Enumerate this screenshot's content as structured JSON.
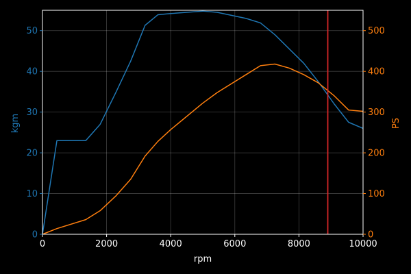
{
  "chart_data": {
    "type": "line",
    "xlabel": "rpm",
    "ylabel_left": "kgm",
    "ylabel_right": "PS",
    "xlim": [
      0,
      10000
    ],
    "ylim_left": [
      0,
      55
    ],
    "ylim_right": [
      0,
      550
    ],
    "x_ticks": [
      0,
      2000,
      4000,
      6000,
      8000,
      10000
    ],
    "y_ticks_left": [
      0,
      10,
      20,
      30,
      40,
      50
    ],
    "y_ticks_right": [
      0,
      100,
      200,
      300,
      400,
      500
    ],
    "grid": true,
    "vline_x": 8900,
    "series": [
      {
        "axis": "left",
        "color": "#1f77b4",
        "x": [
          0,
          450,
          1350,
          1800,
          2300,
          2750,
          3200,
          3600,
          4000,
          5000,
          5450,
          6350,
          6800,
          7250,
          8150,
          8600,
          9100,
          9550,
          10000
        ],
        "y": [
          0,
          23,
          23,
          27,
          35,
          42.5,
          51.3,
          53.9,
          54.2,
          54.8,
          54.5,
          53,
          51.9,
          49,
          42,
          37.5,
          32,
          27.5,
          26
        ]
      },
      {
        "axis": "right",
        "color": "#ff7f0e",
        "x": [
          0,
          450,
          1350,
          1800,
          2300,
          2750,
          3200,
          3600,
          4000,
          5000,
          5450,
          6350,
          6800,
          7250,
          7700,
          8150,
          8600,
          9100,
          9550,
          10000
        ],
        "y": [
          0,
          14,
          36,
          58,
          95,
          135,
          192,
          228,
          257,
          322,
          348,
          392,
          414,
          418,
          408,
          392,
          372,
          340,
          305,
          302
        ]
      }
    ]
  },
  "colors": {
    "left_axis": "#1f77b4",
    "right_axis": "#ff7f0e",
    "vline": "#d62728",
    "frame": "#ffffff"
  }
}
